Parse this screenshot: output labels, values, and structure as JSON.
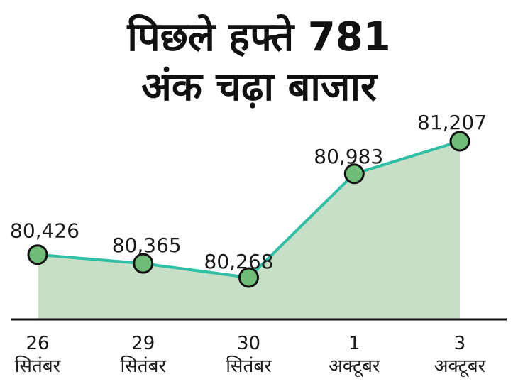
{
  "title": {
    "line1": "पिछले हफ्ते 781",
    "line2": "अंक चढ़ा बाजार"
  },
  "chart_data": {
    "type": "area",
    "title": "पिछले हफ्ते 781 अंक चढ़ा बाजार",
    "categories": [
      "26 सितंबर",
      "29 सितंबर",
      "30 सितंबर",
      "1 अक्टूबर",
      "3 अक्टूबर"
    ],
    "tick_labels": [
      {
        "line1": "26",
        "line2": "सितंबर"
      },
      {
        "line1": "29",
        "line2": "सितंबर"
      },
      {
        "line1": "30",
        "line2": "सितंबर"
      },
      {
        "line1": "1",
        "line2": "अक्टूबर"
      },
      {
        "line1": "3",
        "line2": "अक्टूबर"
      }
    ],
    "values": [
      80426,
      80365,
      80268,
      80983,
      81207
    ],
    "point_labels": [
      "80,426",
      "80,365",
      "80,268",
      "80,983",
      "81,207"
    ],
    "ylim": [
      80268,
      81207
    ],
    "xlabel": "",
    "ylabel": "",
    "grid": false,
    "legend": "none",
    "colors": {
      "line": "#2fbfa4",
      "area": "#c7dfc6",
      "marker": "#70bc79",
      "marker_stroke": "#111111",
      "axis": "#111111",
      "label_text": "#1a1a1a",
      "title_text": "#111111",
      "background": "#ffffff"
    }
  }
}
